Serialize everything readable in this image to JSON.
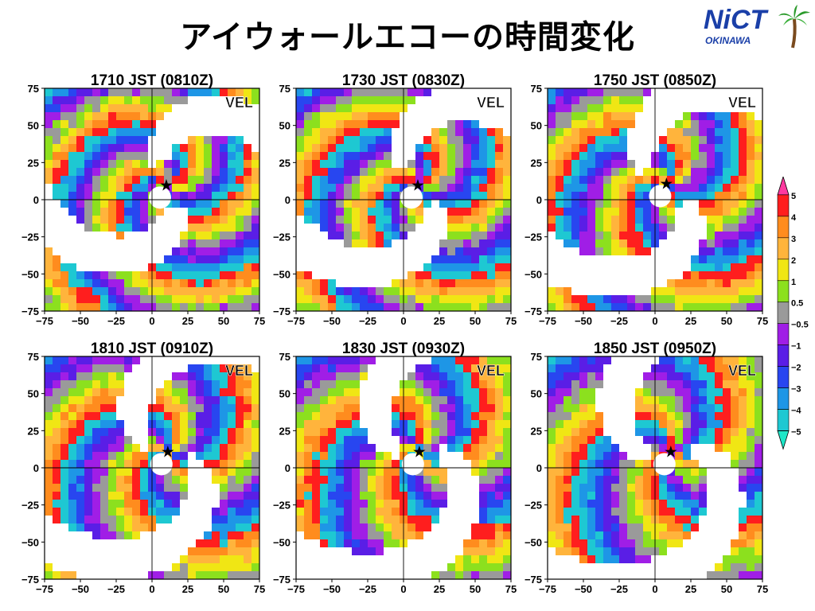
{
  "slide": {
    "title": "アイウォールエコーの時間変化"
  },
  "logo": {
    "brand": "NiCT",
    "sub": "OKINAWA",
    "icon": "palm-tree-icon"
  },
  "chart_data": [
    {
      "type": "heatmap",
      "title": "1710 JST (0810Z)",
      "label": "VEL",
      "xlim": [
        -75,
        75
      ],
      "ylim": [
        -75,
        75
      ],
      "xticks": [
        "−75",
        "−50",
        "−25",
        "0",
        "25",
        "50",
        "75"
      ],
      "yticks": [
        "75",
        "50",
        "25",
        "0",
        "−25",
        "−50",
        "−75"
      ],
      "center_marker": [
        10,
        10
      ]
    },
    {
      "type": "heatmap",
      "title": "1730 JST (0830Z)",
      "label": "VEL",
      "xlim": [
        -75,
        75
      ],
      "ylim": [
        -75,
        75
      ],
      "xticks": [
        "−75",
        "−50",
        "−25",
        "0",
        "25",
        "50",
        "75"
      ],
      "yticks": [
        "75",
        "50",
        "25",
        "0",
        "−25",
        "−50",
        "−75"
      ],
      "center_marker": [
        10,
        10
      ]
    },
    {
      "type": "heatmap",
      "title": "1750 JST (0850Z)",
      "label": "VEL",
      "xlim": [
        -75,
        75
      ],
      "ylim": [
        -75,
        75
      ],
      "xticks": [
        "−75",
        "−50",
        "−25",
        "0",
        "25",
        "50",
        "75"
      ],
      "yticks": [
        "75",
        "50",
        "25",
        "0",
        "−25",
        "−50",
        "−75"
      ],
      "center_marker": [
        8,
        11
      ]
    },
    {
      "type": "heatmap",
      "title": "1810 JST (0910Z)",
      "label": "VEL",
      "xlim": [
        -75,
        75
      ],
      "ylim": [
        -75,
        75
      ],
      "xticks": [
        "−75",
        "−50",
        "−25",
        "0",
        "25",
        "50",
        "75"
      ],
      "yticks": [
        "75",
        "50",
        "25",
        "0",
        "−25",
        "−50",
        "−75"
      ],
      "center_marker": [
        11,
        11
      ]
    },
    {
      "type": "heatmap",
      "title": "1830 JST (0930Z)",
      "label": "VEL",
      "xlim": [
        -75,
        75
      ],
      "ylim": [
        -75,
        75
      ],
      "xticks": [
        "−75",
        "−50",
        "−25",
        "0",
        "25",
        "50",
        "75"
      ],
      "yticks": [
        "75",
        "50",
        "25",
        "0",
        "−25",
        "−50",
        "−75"
      ],
      "center_marker": [
        11,
        11
      ]
    },
    {
      "type": "heatmap",
      "title": "1850 JST (0950Z)",
      "label": "VEL",
      "xlim": [
        -75,
        75
      ],
      "ylim": [
        -75,
        75
      ],
      "xticks": [
        "−75",
        "−50",
        "−25",
        "0",
        "25",
        "50",
        "75"
      ],
      "yticks": [
        "75",
        "50",
        "25",
        "0",
        "−25",
        "−50",
        "−75"
      ],
      "center_marker": [
        11,
        11
      ]
    }
  ],
  "colorbar": {
    "labels": [
      "5",
      "4",
      "3",
      "2",
      "1",
      "0.5",
      "−0.5",
      "−1",
      "−2",
      "−3",
      "−4",
      "−5"
    ],
    "colors": [
      "#ff3aa0",
      "#ff1e1e",
      "#ff8c1e",
      "#ffb43c",
      "#f0e614",
      "#8ce01e",
      "#9a9a9a",
      "#a01ee6",
      "#5a1ee6",
      "#2846f0",
      "#1e96e6",
      "#1ec8d2",
      "#1ee6c8"
    ]
  }
}
